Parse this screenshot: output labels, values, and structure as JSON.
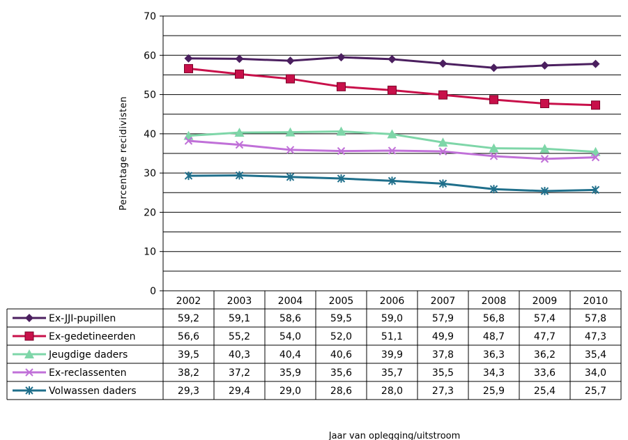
{
  "chart_data": {
    "type": "line",
    "ylabel": "Percentage recidivisten",
    "xlabel": "Jaar van oplegging/uitstroom",
    "ylim": [
      0,
      70
    ],
    "yticks": [
      0,
      10,
      20,
      30,
      40,
      50,
      60,
      70
    ],
    "grid": true,
    "legend": "data-table",
    "categories": [
      "2002",
      "2003",
      "2004",
      "2005",
      "2006",
      "2007",
      "2008",
      "2009",
      "2010"
    ],
    "series": [
      {
        "name": "Ex-JJI-pupillen",
        "color": "#4B1F5F",
        "marker": "diamond",
        "values": [
          59.2,
          59.1,
          58.6,
          59.5,
          59.0,
          57.9,
          56.8,
          57.4,
          57.8
        ],
        "labels": [
          "59,2",
          "59,1",
          "58,6",
          "59,5",
          "59,0",
          "57,9",
          "56,8",
          "57,4",
          "57,8"
        ]
      },
      {
        "name": "Ex-gedetineerden",
        "color": "#C8104A",
        "marker": "square",
        "values": [
          56.6,
          55.2,
          54.0,
          52.0,
          51.1,
          49.9,
          48.7,
          47.7,
          47.3
        ],
        "labels": [
          "56,6",
          "55,2",
          "54,0",
          "52,0",
          "51,1",
          "49,9",
          "48,7",
          "47,7",
          "47,3"
        ]
      },
      {
        "name": "Jeugdige daders",
        "color": "#7ED6A8",
        "marker": "triangle",
        "values": [
          39.5,
          40.3,
          40.4,
          40.6,
          39.9,
          37.8,
          36.3,
          36.2,
          35.4
        ],
        "labels": [
          "39,5",
          "40,3",
          "40,4",
          "40,6",
          "39,9",
          "37,8",
          "36,3",
          "36,2",
          "35,4"
        ]
      },
      {
        "name": "Ex-reclassenten",
        "color": "#C070D8",
        "marker": "x",
        "values": [
          38.2,
          37.2,
          35.9,
          35.6,
          35.7,
          35.5,
          34.3,
          33.6,
          34.0
        ],
        "labels": [
          "38,2",
          "37,2",
          "35,9",
          "35,6",
          "35,7",
          "35,5",
          "34,3",
          "33,6",
          "34,0"
        ]
      },
      {
        "name": "Volwassen daders",
        "color": "#1F6F8B",
        "marker": "star",
        "values": [
          29.3,
          29.4,
          29.0,
          28.6,
          28.0,
          27.3,
          25.9,
          25.4,
          25.7
        ],
        "labels": [
          "29,3",
          "29,4",
          "29,0",
          "28,6",
          "28,0",
          "27,3",
          "25,9",
          "25,4",
          "25,7"
        ]
      }
    ]
  }
}
